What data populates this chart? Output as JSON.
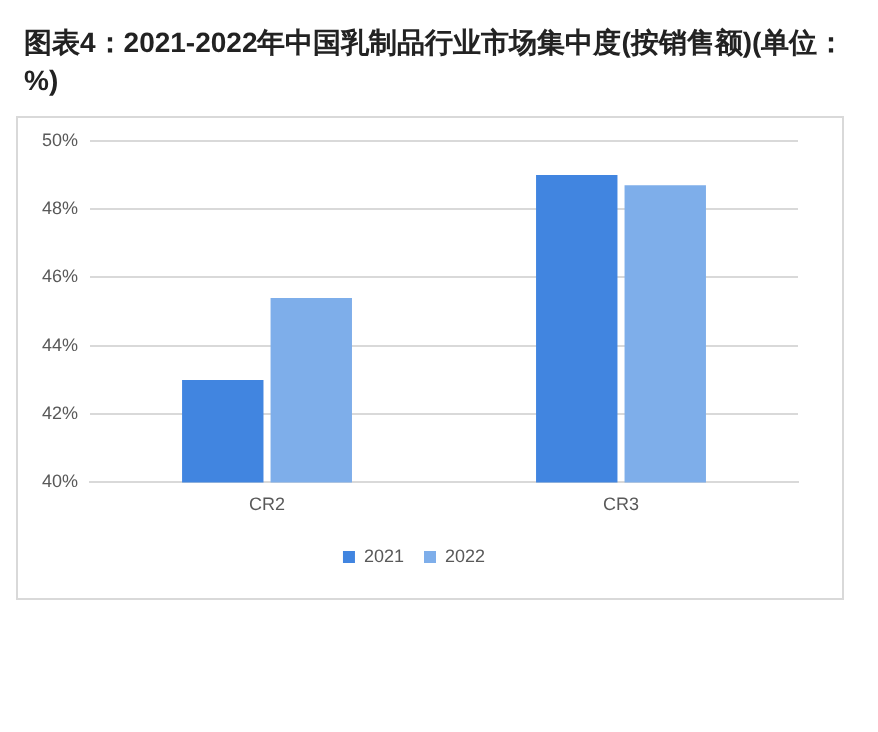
{
  "chart_data": {
    "type": "bar",
    "title": "图表4：2021-2022年中国乳制品行业市场集中度(按销售额)(单位：%)",
    "categories": [
      "CR2",
      "CR3"
    ],
    "series": [
      {
        "name": "2021",
        "color": "#4185e0",
        "values": [
          43.0,
          49.0
        ]
      },
      {
        "name": "2022",
        "color": "#7eaeea",
        "values": [
          45.4,
          48.7
        ]
      }
    ],
    "ylim": [
      40,
      50
    ],
    "yticks": [
      {
        "value": 40,
        "label": "40%"
      },
      {
        "value": 42,
        "label": "42%"
      },
      {
        "value": 44,
        "label": "44%"
      },
      {
        "value": 46,
        "label": "46%"
      },
      {
        "value": 48,
        "label": "48%"
      },
      {
        "value": 50,
        "label": "50%"
      }
    ],
    "grid": "y",
    "legend": "bottom"
  }
}
